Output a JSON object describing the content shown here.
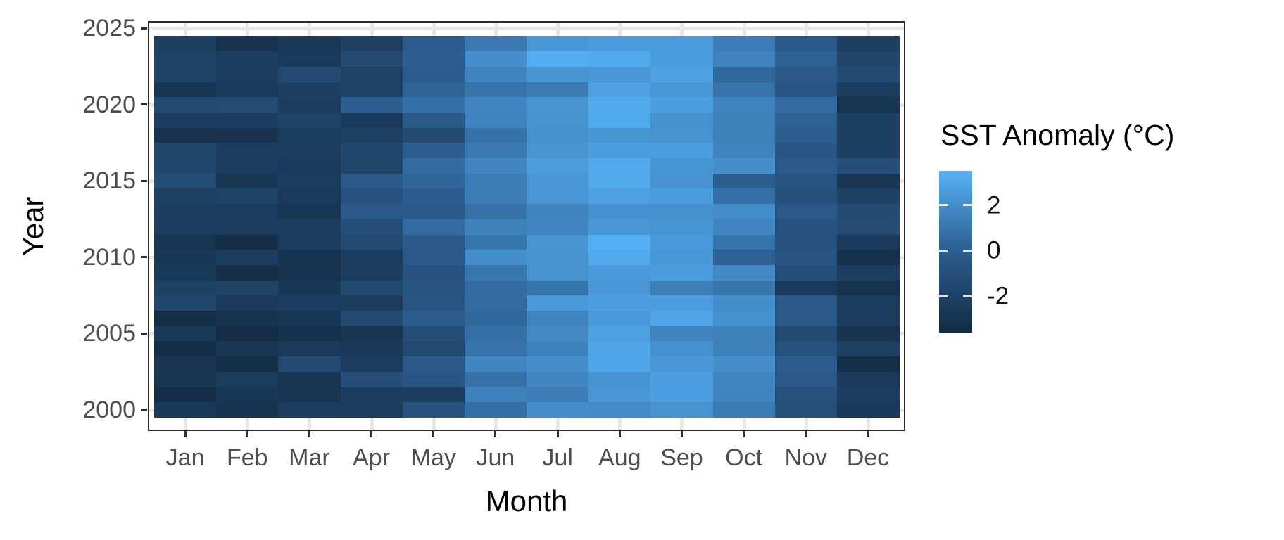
{
  "axes": {
    "x": {
      "title": "Month",
      "tick_labels": [
        "Jan",
        "Feb",
        "Mar",
        "Apr",
        "May",
        "Jun",
        "Jul",
        "Aug",
        "Sep",
        "Oct",
        "Nov",
        "Dec"
      ]
    },
    "y": {
      "title": "Year",
      "tick_labels": [
        "2025",
        "2020",
        "2015",
        "2010",
        "2005",
        "2000"
      ]
    }
  },
  "legend": {
    "title": "SST Anomaly (°C)",
    "tick_labels": [
      "2",
      "0",
      "-2"
    ],
    "tick_values": [
      2,
      0,
      -2
    ],
    "gradient_low": "#132B43",
    "gradient_mid": "#2C5D8F",
    "gradient_high": "#56B1F7"
  },
  "style": {
    "panel_border_color": "#2b2b2b",
    "gridline_color": "#e7e7e7",
    "axis_text_color": "#4d4d4d",
    "background": "#ffffff"
  },
  "chart_data": {
    "type": "heatmap",
    "xlabel": "Month",
    "ylabel": "Year",
    "fill_label": "SST Anomaly (°C)",
    "fill_domain": [
      -3.6,
      3.5
    ],
    "fill_colors": {
      "low": "#132B43",
      "high": "#56B1F7"
    },
    "x_categories": [
      "Jan",
      "Feb",
      "Mar",
      "Apr",
      "May",
      "Jun",
      "Jul",
      "Aug",
      "Sep",
      "Oct",
      "Nov",
      "Dec"
    ],
    "years": [
      2000,
      2001,
      2002,
      2003,
      2004,
      2005,
      2006,
      2007,
      2008,
      2009,
      2010,
      2011,
      2012,
      2013,
      2014,
      2015,
      2016,
      2017,
      2018,
      2019,
      2020,
      2021,
      2022,
      2023,
      2024
    ],
    "values": [
      [
        -2.6,
        -3.0,
        -2.3,
        -2.4,
        -0.8,
        0.7,
        2.0,
        1.9,
        2.2,
        1.2,
        -1.0,
        -2.6
      ],
      [
        -3.4,
        -2.7,
        -2.9,
        -2.4,
        -2.3,
        1.5,
        1.3,
        2.4,
        2.7,
        1.6,
        -0.9,
        -2.3
      ],
      [
        -2.9,
        -2.4,
        -2.9,
        -1.1,
        -0.6,
        0.8,
        1.7,
        2.2,
        2.7,
        1.7,
        -0.4,
        -2.5
      ],
      [
        -2.9,
        -3.3,
        -1.5,
        -2.3,
        -0.3,
        1.7,
        2.0,
        3.0,
        2.4,
        2.0,
        -0.2,
        -3.3
      ],
      [
        -3.4,
        -2.8,
        -2.5,
        -2.6,
        -1.5,
        0.9,
        1.5,
        3.0,
        2.1,
        1.5,
        -0.8,
        -2.1
      ],
      [
        -2.6,
        -3.5,
        -3.2,
        -2.9,
        -1.1,
        0.7,
        1.8,
        2.8,
        1.6,
        1.5,
        -1.4,
        -3.0
      ],
      [
        -3.4,
        -3.0,
        -2.8,
        -1.4,
        -0.1,
        0.4,
        1.6,
        2.5,
        3.0,
        2.1,
        -0.3,
        -2.4
      ],
      [
        -1.6,
        -2.5,
        -2.3,
        -2.4,
        -0.6,
        0.5,
        2.5,
        2.7,
        2.7,
        2.0,
        -0.4,
        -2.4
      ],
      [
        -2.1,
        -1.9,
        -2.7,
        -1.5,
        -0.7,
        0.6,
        0.9,
        2.4,
        1.4,
        1.0,
        -2.5,
        -3.0
      ],
      [
        -2.6,
        -3.3,
        -3.0,
        -2.3,
        -0.8,
        1.0,
        2.2,
        2.5,
        2.6,
        1.8,
        -1.1,
        -2.3
      ],
      [
        -2.7,
        -2.4,
        -3.0,
        -2.3,
        -0.3,
        2.0,
        2.2,
        3.1,
        2.4,
        0.1,
        -0.7,
        -3.2
      ],
      [
        -2.9,
        -3.5,
        -2.4,
        -1.4,
        -0.3,
        1.0,
        2.3,
        3.4,
        2.5,
        0.9,
        -0.8,
        -2.5
      ],
      [
        -2.4,
        -2.3,
        -2.3,
        -1.1,
        0.5,
        1.5,
        1.7,
        2.4,
        2.3,
        1.7,
        -0.8,
        -1.3
      ],
      [
        -2.3,
        -2.4,
        -2.8,
        -0.3,
        -0.3,
        0.8,
        1.6,
        2.1,
        2.1,
        2.0,
        -0.4,
        -1.4
      ],
      [
        -2.1,
        -2.0,
        -2.5,
        -0.8,
        -0.1,
        1.3,
        2.4,
        2.8,
        2.6,
        0.7,
        -1.0,
        -2.1
      ],
      [
        -1.2,
        -2.8,
        -2.4,
        -0.4,
        0.3,
        1.3,
        2.4,
        3.1,
        2.2,
        0.0,
        -0.7,
        -2.8
      ],
      [
        -1.6,
        -2.3,
        -2.5,
        -1.7,
        0.6,
        1.7,
        2.6,
        3.1,
        2.3,
        2.0,
        -0.3,
        -1.1
      ],
      [
        -1.7,
        -2.3,
        -2.3,
        -1.6,
        0.0,
        1.1,
        2.3,
        2.7,
        2.7,
        1.6,
        -0.5,
        -2.2
      ],
      [
        -3.1,
        -3.0,
        -2.4,
        -2.1,
        -1.4,
        0.8,
        2.1,
        2.3,
        2.2,
        1.5,
        0.0,
        -2.2
      ],
      [
        -2.3,
        -2.3,
        -2.0,
        -2.5,
        -0.3,
        1.6,
        2.2,
        3.2,
        2.1,
        1.5,
        0.1,
        -2.2
      ],
      [
        -1.4,
        -1.3,
        -2.3,
        0.0,
        0.7,
        1.7,
        2.3,
        3.1,
        2.7,
        1.6,
        0.5,
        -2.9
      ],
      [
        -2.9,
        -2.5,
        -2.2,
        -2.0,
        0.2,
        0.9,
        1.2,
        2.8,
        2.4,
        0.9,
        -0.6,
        -2.3
      ],
      [
        -1.9,
        -2.4,
        -1.5,
        -2.0,
        -0.1,
        1.6,
        2.3,
        2.4,
        2.8,
        0.4,
        -0.3,
        -1.4
      ],
      [
        -2.0,
        -2.3,
        -2.5,
        -1.4,
        0.0,
        2.0,
        3.3,
        3.1,
        2.6,
        1.6,
        0.1,
        -1.8
      ],
      [
        -2.2,
        -3.1,
        -2.6,
        -2.1,
        -0.1,
        1.1,
        2.4,
        2.6,
        2.6,
        1.3,
        -0.4,
        -2.2
      ]
    ]
  }
}
